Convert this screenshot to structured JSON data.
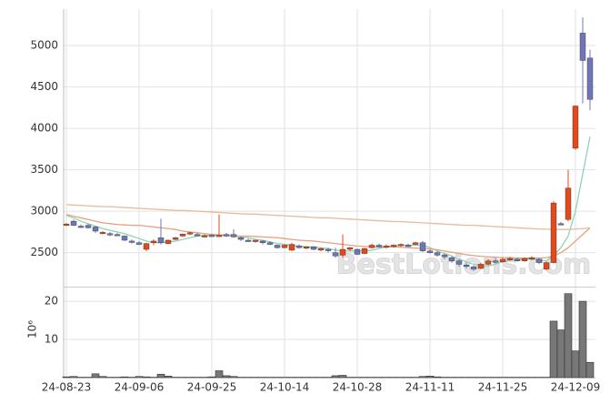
{
  "chart_data": {
    "type": "candlestick",
    "categories": [
      "24-08-23",
      null,
      null,
      null,
      null,
      null,
      null,
      null,
      null,
      null,
      "24-09-06",
      null,
      null,
      null,
      null,
      null,
      null,
      null,
      null,
      null,
      "24-09-25",
      null,
      null,
      null,
      null,
      null,
      null,
      null,
      null,
      null,
      "24-10-14",
      null,
      null,
      null,
      null,
      null,
      null,
      null,
      null,
      null,
      "24-10-28",
      null,
      null,
      null,
      null,
      null,
      null,
      null,
      null,
      null,
      "24-11-11",
      null,
      null,
      null,
      null,
      null,
      null,
      null,
      null,
      null,
      "24-11-25",
      null,
      null,
      null,
      null,
      null,
      null,
      null,
      null,
      null,
      "24-12-09",
      null,
      null
    ],
    "open": [
      2840,
      2880,
      2820,
      2830,
      2810,
      2740,
      2730,
      2720,
      2700,
      2640,
      2620,
      2540,
      2620,
      2680,
      2610,
      2660,
      2700,
      2730,
      2720,
      2700,
      2710,
      2700,
      2720,
      2720,
      2680,
      2650,
      2640,
      2640,
      2620,
      2590,
      2560,
      2530,
      2580,
      2560,
      2570,
      2530,
      2540,
      2500,
      2470,
      2540,
      2540,
      2490,
      2560,
      2590,
      2570,
      2580,
      2590,
      2590,
      2600,
      2620,
      2520,
      2500,
      2470,
      2440,
      2400,
      2350,
      2330,
      2310,
      2360,
      2400,
      2390,
      2420,
      2420,
      2400,
      2430,
      2420,
      2300,
      2380,
      2850,
      2900,
      3760,
      5150,
      4850
    ],
    "high": [
      2860,
      2900,
      2840,
      2850,
      2820,
      2760,
      2750,
      2740,
      2710,
      2660,
      2640,
      2620,
      2660,
      2910,
      2660,
      2690,
      2730,
      2750,
      2740,
      2720,
      2730,
      2960,
      2740,
      2780,
      2700,
      2670,
      2660,
      2650,
      2640,
      2600,
      2600,
      2620,
      2600,
      2580,
      2580,
      2560,
      2560,
      2560,
      2720,
      2570,
      2550,
      2560,
      2610,
      2610,
      2600,
      2600,
      2610,
      2610,
      2630,
      2640,
      2540,
      2520,
      2490,
      2460,
      2420,
      2380,
      2350,
      2380,
      2420,
      2430,
      2440,
      2450,
      2440,
      2440,
      2460,
      2440,
      2390,
      3120,
      2870,
      3500,
      4280,
      5340,
      4950
    ],
    "low": [
      2820,
      2820,
      2800,
      2790,
      2740,
      2720,
      2700,
      2700,
      2640,
      2610,
      2590,
      2520,
      2590,
      2600,
      2600,
      2650,
      2690,
      2710,
      2700,
      2680,
      2690,
      2690,
      2690,
      2680,
      2640,
      2630,
      2620,
      2600,
      2590,
      2550,
      2550,
      2520,
      2550,
      2540,
      2530,
      2520,
      2500,
      2440,
      2440,
      2520,
      2470,
      2480,
      2550,
      2560,
      2550,
      2560,
      2570,
      2570,
      2590,
      2510,
      2490,
      2450,
      2420,
      2380,
      2330,
      2310,
      2280,
      2300,
      2350,
      2370,
      2380,
      2400,
      2390,
      2390,
      2410,
      2360,
      2290,
      2370,
      2830,
      2880,
      3740,
      4300,
      4220
    ],
    "close": [
      2845,
      2830,
      2810,
      2800,
      2760,
      2745,
      2720,
      2715,
      2650,
      2630,
      2600,
      2610,
      2640,
      2620,
      2650,
      2680,
      2725,
      2740,
      2710,
      2705,
      2700,
      2710,
      2700,
      2690,
      2660,
      2640,
      2650,
      2620,
      2600,
      2560,
      2590,
      2600,
      2560,
      2570,
      2540,
      2550,
      2530,
      2460,
      2540,
      2560,
      2480,
      2550,
      2590,
      2570,
      2580,
      2590,
      2600,
      2580,
      2620,
      2520,
      2500,
      2470,
      2450,
      2400,
      2360,
      2340,
      2300,
      2360,
      2400,
      2390,
      2420,
      2430,
      2400,
      2430,
      2440,
      2380,
      2380,
      3100,
      2840,
      3280,
      4270,
      4820,
      4350
    ],
    "up_color": "#e2491c",
    "down_color": "#7076b5",
    "ylim": [
      2090,
      5440
    ],
    "yticks": [
      2500,
      3000,
      3500,
      4000,
      4500,
      5000
    ],
    "grid": true,
    "lines": [
      {
        "color": "#8fd3b4",
        "values": [
          2950,
          2920,
          2880,
          2850,
          2820,
          2790,
          2770,
          2750,
          2730,
          2700,
          2670,
          2640,
          2620,
          2620,
          2630,
          2640,
          2660,
          2680,
          2700,
          2710,
          2710,
          2710,
          2710,
          2700,
          2690,
          2680,
          2660,
          2650,
          2630,
          2610,
          2600,
          2590,
          2580,
          2570,
          2570,
          2560,
          2550,
          2530,
          2520,
          2520,
          2520,
          2520,
          2530,
          2550,
          2570,
          2580,
          2590,
          2590,
          2590,
          2590,
          2560,
          2520,
          2490,
          2460,
          2420,
          2390,
          2360,
          2340,
          2340,
          2360,
          2390,
          2410,
          2420,
          2420,
          2420,
          2410,
          2400,
          2470,
          2560,
          2700,
          3000,
          3450,
          3900
        ]
      },
      {
        "color": "#e8a07e",
        "values": [
          2960,
          2940,
          2920,
          2900,
          2880,
          2860,
          2850,
          2840,
          2835,
          2830,
          2830,
          2820,
          2810,
          2800,
          2790,
          2780,
          2760,
          2750,
          2740,
          2730,
          2720,
          2715,
          2710,
          2705,
          2700,
          2700,
          2695,
          2690,
          2685,
          2680,
          2670,
          2660,
          2650,
          2645,
          2640,
          2630,
          2620,
          2610,
          2600,
          2590,
          2580,
          2575,
          2570,
          2570,
          2570,
          2570,
          2565,
          2560,
          2555,
          2550,
          2545,
          2535,
          2520,
          2505,
          2490,
          2475,
          2465,
          2455,
          2450,
          2445,
          2440,
          2440,
          2435,
          2435,
          2435,
          2435,
          2440,
          2460,
          2500,
          2560,
          2640,
          2720,
          2800
        ]
      },
      {
        "color": "#e6bb9b",
        "values": [
          3080,
          3075,
          3070,
          3065,
          3060,
          3055,
          3055,
          3050,
          3045,
          3040,
          3035,
          3030,
          3025,
          3020,
          3015,
          3010,
          3010,
          3005,
          3000,
          2995,
          2990,
          2985,
          2980,
          2975,
          2970,
          2965,
          2965,
          2960,
          2955,
          2950,
          2945,
          2940,
          2935,
          2930,
          2925,
          2920,
          2920,
          2915,
          2910,
          2905,
          2900,
          2895,
          2890,
          2885,
          2880,
          2875,
          2875,
          2870,
          2865,
          2860,
          2855,
          2850,
          2845,
          2840,
          2835,
          2830,
          2830,
          2825,
          2820,
          2815,
          2810,
          2805,
          2800,
          2795,
          2790,
          2785,
          2785,
          2780,
          2780,
          2780,
          2785,
          2790,
          2800
        ]
      }
    ],
    "volume": {
      "values": [
        0.2,
        0.3,
        0.1,
        0.1,
        1.0,
        0.3,
        0.1,
        0.1,
        0.2,
        0.1,
        0.3,
        0.2,
        0.1,
        0.9,
        0.4,
        0.1,
        0.1,
        0.1,
        0.1,
        0.1,
        0.2,
        1.8,
        0.5,
        0.3,
        0.1,
        0.1,
        0.1,
        0.1,
        0.1,
        0.1,
        0.1,
        0.1,
        0.1,
        0.1,
        0.1,
        0.1,
        0.1,
        0.5,
        0.6,
        0.1,
        0.1,
        0.1,
        0.1,
        0.1,
        0.1,
        0.1,
        0.1,
        0.1,
        0.1,
        0.3,
        0.4,
        0.2,
        0.1,
        0.1,
        0.1,
        0.1,
        0.1,
        0.1,
        0.1,
        0.1,
        0.1,
        0.1,
        0.1,
        0.1,
        0.1,
        0.1,
        0.1,
        14.8,
        12.5,
        22,
        7,
        20,
        4
      ],
      "color": "#777777",
      "ylim": [
        0,
        23.6
      ],
      "yticks": [
        10,
        20
      ],
      "ylabel": "10⁶"
    },
    "watermark": "BestLotions.com"
  }
}
